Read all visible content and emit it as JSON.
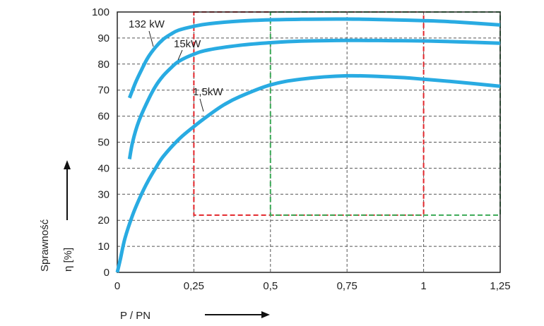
{
  "chart_data": {
    "type": "line",
    "title": "",
    "xlabel": "P / PN",
    "ylabel_main": "Sprawność",
    "ylabel_symbol": "η [%]",
    "xlim": [
      0,
      1.25
    ],
    "ylim": [
      0,
      100
    ],
    "xticks": [
      0,
      0.25,
      0.5,
      0.75,
      1,
      1.25
    ],
    "xtick_labels": [
      "0",
      "0,25",
      "0,5",
      "0,75",
      "1",
      "1,25"
    ],
    "yticks": [
      0,
      10,
      20,
      30,
      40,
      50,
      60,
      70,
      80,
      90,
      100
    ],
    "grid": true,
    "curve_color": "#29abe2",
    "series": [
      {
        "name": "132 kW",
        "x": [
          0.04,
          0.06,
          0.08,
          0.1,
          0.125,
          0.15,
          0.175,
          0.2,
          0.25,
          0.3,
          0.4,
          0.5,
          0.6,
          0.75,
          0.9,
          1.0,
          1.1,
          1.25
        ],
        "y": [
          67,
          73,
          78,
          82.5,
          86.5,
          89.5,
          91.5,
          93,
          94.5,
          95.5,
          96.5,
          97,
          97.2,
          97.3,
          97,
          96.7,
          96.2,
          95
        ]
      },
      {
        "name": "15kW",
        "x": [
          0.04,
          0.05,
          0.07,
          0.1,
          0.125,
          0.15,
          0.175,
          0.2,
          0.25,
          0.3,
          0.4,
          0.5,
          0.6,
          0.75,
          0.9,
          1.0,
          1.1,
          1.25
        ],
        "y": [
          43.5,
          50,
          58,
          66,
          71.5,
          75.5,
          78.5,
          81,
          83.8,
          85.5,
          87.2,
          88.2,
          88.8,
          89.1,
          89,
          88.9,
          88.6,
          88
        ]
      },
      {
        "name": "1,5kW",
        "x": [
          0,
          0.01,
          0.025,
          0.05,
          0.075,
          0.1,
          0.125,
          0.15,
          0.2,
          0.25,
          0.3,
          0.35,
          0.4,
          0.5,
          0.6,
          0.75,
          0.9,
          1.0,
          1.1,
          1.25
        ],
        "y": [
          0,
          5,
          13,
          22,
          29,
          35,
          40,
          44.5,
          51,
          56,
          60.5,
          64.5,
          67.5,
          72,
          74.2,
          75.5,
          75,
          74.2,
          73.2,
          71.5
        ]
      }
    ],
    "highlight_boxes": [
      {
        "x_range": [
          0.25,
          1.0
        ],
        "y_range": [
          22,
          100
        ],
        "color": "#e3262b"
      },
      {
        "x_range": [
          0.5,
          1.25
        ],
        "y_range": [
          22,
          100
        ],
        "color": "#3ba956"
      }
    ],
    "curve_labels": [
      {
        "text": "132 kW",
        "series": "132 kW"
      },
      {
        "text": "15kW",
        "series": "15kW"
      },
      {
        "text": "1,5kW",
        "series": "1,5kW"
      }
    ]
  }
}
